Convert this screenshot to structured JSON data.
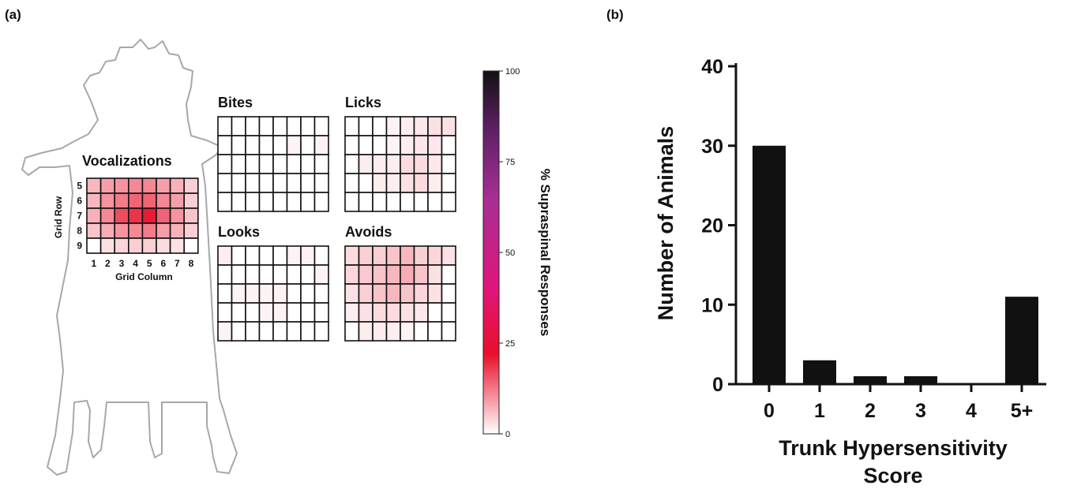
{
  "panels": {
    "a_label": "(a)",
    "b_label": "(b)"
  },
  "colorbar": {
    "title": "% Supraspinal Responses",
    "ticks": [
      0,
      25,
      50,
      75,
      100
    ],
    "range": [
      0,
      100
    ],
    "colors": [
      "#ffffff",
      "#e8102a",
      "#e0157a",
      "#a72f95",
      "#5a1f60",
      "#111111"
    ]
  },
  "chart_data": [
    {
      "type": "heatmap",
      "title": "Vocalizations",
      "xlabel": "Grid Column",
      "ylabel": "Grid Row",
      "x": [
        "1",
        "2",
        "3",
        "4",
        "5",
        "6",
        "7",
        "8"
      ],
      "y": [
        "5",
        "6",
        "7",
        "8",
        "9"
      ],
      "values": [
        [
          12,
          16,
          18,
          20,
          20,
          16,
          13,
          8
        ],
        [
          12,
          18,
          22,
          26,
          26,
          20,
          16,
          8
        ],
        [
          13,
          20,
          30,
          34,
          38,
          26,
          18,
          10
        ],
        [
          10,
          14,
          18,
          20,
          22,
          16,
          13,
          8
        ],
        [
          0,
          5,
          7,
          8,
          8,
          6,
          5,
          0
        ]
      ]
    },
    {
      "type": "heatmap",
      "title": "Bites",
      "values": [
        [
          0,
          0,
          0,
          0,
          0,
          0,
          0,
          0
        ],
        [
          0,
          0,
          0,
          0,
          0,
          2,
          0,
          2
        ],
        [
          0,
          0,
          0,
          0,
          0,
          0,
          0,
          0
        ],
        [
          0,
          0,
          0,
          0,
          0,
          0,
          0,
          0
        ],
        [
          0,
          0,
          0,
          0,
          0,
          0,
          0,
          0
        ]
      ]
    },
    {
      "type": "heatmap",
      "title": "Licks",
      "values": [
        [
          0,
          0,
          0,
          2,
          3,
          4,
          5,
          5
        ],
        [
          0,
          0,
          0,
          2,
          3,
          4,
          4,
          0
        ],
        [
          0,
          3,
          3,
          3,
          6,
          6,
          4,
          0
        ],
        [
          0,
          0,
          3,
          3,
          5,
          6,
          3,
          0
        ],
        [
          0,
          0,
          0,
          0,
          0,
          0,
          0,
          0
        ]
      ]
    },
    {
      "type": "heatmap",
      "title": "Looks",
      "values": [
        [
          3,
          0,
          0,
          0,
          0,
          2,
          2,
          0
        ],
        [
          0,
          0,
          0,
          0,
          0,
          0,
          0,
          2
        ],
        [
          0,
          2,
          2,
          2,
          2,
          0,
          0,
          0
        ],
        [
          0,
          0,
          0,
          2,
          2,
          0,
          0,
          0
        ],
        [
          2,
          0,
          0,
          0,
          0,
          0,
          0,
          0
        ]
      ]
    },
    {
      "type": "heatmap",
      "title": "Avoids",
      "values": [
        [
          6,
          8,
          8,
          10,
          12,
          8,
          7,
          5
        ],
        [
          7,
          9,
          10,
          12,
          14,
          10,
          5,
          0
        ],
        [
          5,
          8,
          10,
          12,
          10,
          7,
          5,
          0
        ],
        [
          3,
          5,
          6,
          6,
          5,
          4,
          0,
          0
        ],
        [
          0,
          3,
          3,
          3,
          2,
          0,
          0,
          0
        ]
      ]
    },
    {
      "type": "bar",
      "categories": [
        "0",
        "1",
        "2",
        "3",
        "4",
        "5+"
      ],
      "values": [
        30,
        3,
        1,
        1,
        0,
        11
      ],
      "xlabel": "Trunk Hypersensitivity Score",
      "xlabel_lines": [
        "Trunk Hypersensitivity",
        "Score"
      ],
      "ylabel": "Number of Animals",
      "ylim": [
        0,
        40
      ],
      "yticks": [
        0,
        10,
        20,
        30,
        40
      ],
      "bar_color": "#111111"
    }
  ]
}
